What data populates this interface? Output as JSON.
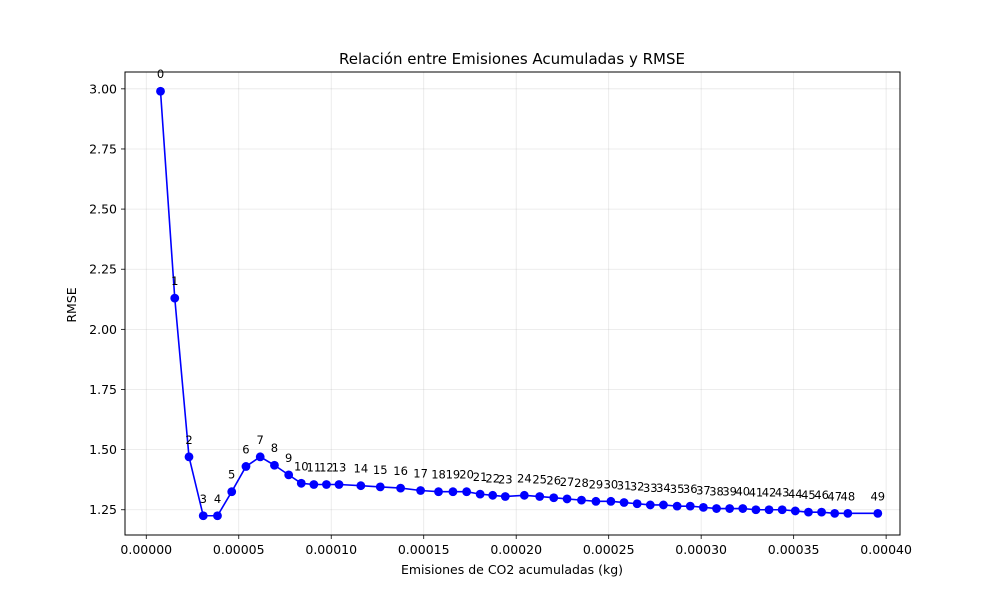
{
  "chart_data": {
    "type": "line",
    "title": "Relación entre Emisiones Acumuladas y RMSE",
    "xlabel": "Emisiones de CO2 acumuladas (kg)",
    "ylabel": "RMSE",
    "xlim": [
      -1.15e-05,
      0.0004075
    ],
    "ylim": [
      1.145,
      3.07
    ],
    "xticks": [
      0.0,
      5e-05,
      0.0001,
      0.00015,
      0.0002,
      0.00025,
      0.0003,
      0.00035,
      0.0004
    ],
    "xtick_labels": [
      "0.00000",
      "0.00005",
      "0.00010",
      "0.00015",
      "0.00020",
      "0.00025",
      "0.00030",
      "0.00035",
      "0.00040"
    ],
    "yticks": [
      1.25,
      1.5,
      1.75,
      2.0,
      2.25,
      2.5,
      2.75,
      3.0
    ],
    "ytick_labels": [
      "1.25",
      "1.50",
      "1.75",
      "2.00",
      "2.25",
      "2.50",
      "2.75",
      "3.00"
    ],
    "grid": true,
    "color": "#0000ff",
    "marker": "circle",
    "point_labels": [
      "0",
      "1",
      "2",
      "3",
      "4",
      "5",
      "6",
      "7",
      "8",
      "9",
      "10",
      "11",
      "12",
      "13",
      "14",
      "15",
      "16",
      "17",
      "18",
      "19",
      "20",
      "21",
      "22",
      "23",
      "24",
      "25",
      "26",
      "27",
      "28",
      "29",
      "30",
      "31",
      "32",
      "33",
      "34",
      "35",
      "36",
      "37",
      "38",
      "39",
      "40",
      "41",
      "42",
      "43",
      "44",
      "45",
      "46",
      "47",
      "48",
      "49"
    ],
    "x": [
      7.7e-06,
      1.54e-05,
      2.31e-05,
      3.08e-05,
      3.85e-05,
      4.62e-05,
      5.39e-05,
      6.16e-05,
      6.93e-05,
      7.7e-05,
      8.38e-05,
      9.06e-05,
      9.74e-05,
      0.0001042,
      0.000116,
      0.0001265,
      0.0001375,
      0.0001483,
      0.000158,
      0.0001658,
      0.0001732,
      0.0001805,
      0.0001873,
      0.0001941,
      0.0002044,
      0.0002127,
      0.0002203,
      0.0002275,
      0.0002353,
      0.0002431,
      0.0002512,
      0.0002583,
      0.0002654,
      0.0002725,
      0.0002796,
      0.000287,
      0.0002941,
      0.0003012,
      0.0003083,
      0.0003154,
      0.0003225,
      0.0003296,
      0.0003367,
      0.0003438,
      0.0003509,
      0.000358,
      0.0003651,
      0.0003722,
      0.0003793,
      0.0003955
    ],
    "y": [
      2.99,
      2.13,
      1.47,
      1.225,
      1.225,
      1.325,
      1.43,
      1.47,
      1.435,
      1.395,
      1.36,
      1.355,
      1.355,
      1.355,
      1.35,
      1.345,
      1.34,
      1.33,
      1.325,
      1.325,
      1.325,
      1.315,
      1.31,
      1.305,
      1.31,
      1.305,
      1.3,
      1.295,
      1.29,
      1.285,
      1.285,
      1.28,
      1.275,
      1.27,
      1.27,
      1.265,
      1.265,
      1.26,
      1.255,
      1.255,
      1.255,
      1.25,
      1.25,
      1.25,
      1.245,
      1.24,
      1.24,
      1.235,
      1.235,
      1.235
    ]
  }
}
